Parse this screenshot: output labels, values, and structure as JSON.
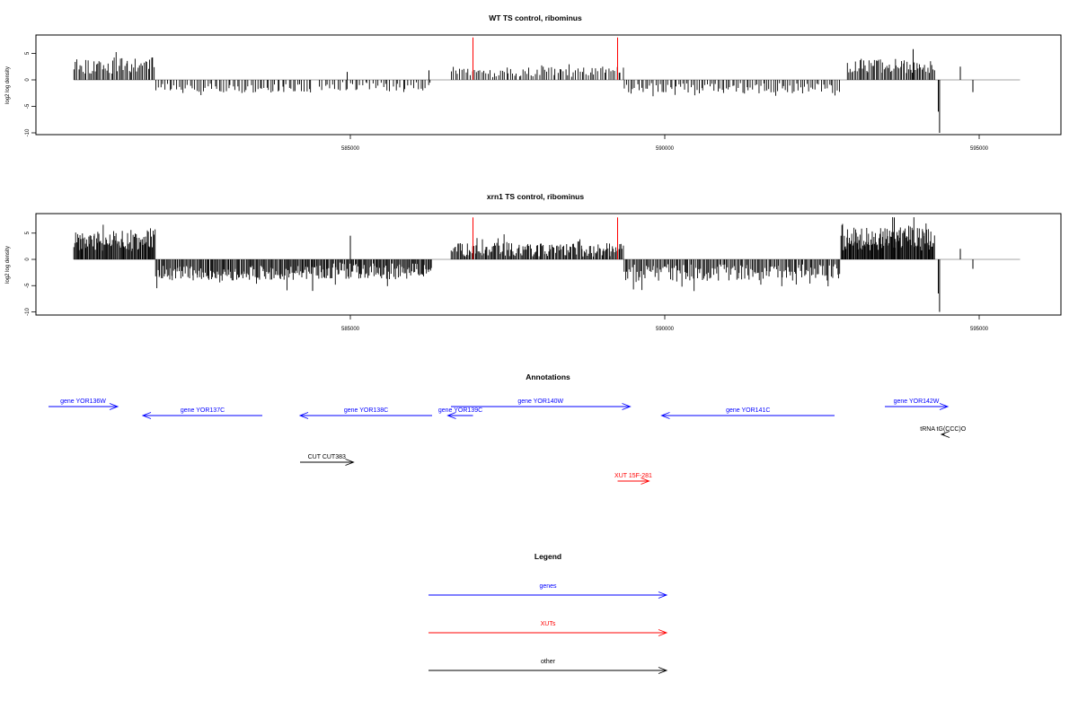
{
  "chart_data": [
    {
      "type": "bar",
      "title": "WT TS control, ribominus",
      "ylabel": "log2 log density",
      "ylim": [
        -10,
        8.5
      ],
      "xlim": [
        580000,
        596300
      ],
      "yticks": [
        "-10",
        "-5",
        "0",
        "5"
      ],
      "xticks": [
        "585000",
        "590000",
        "595000"
      ],
      "markers": [
        {
          "x": 586950,
          "y": 8
        },
        {
          "x": 589250,
          "y": 8
        }
      ],
      "segments": [
        {
          "from": 580600,
          "to": 581900,
          "mean": 2.7,
          "amp": 1.6,
          "n": 55,
          "seed": 11
        },
        {
          "from": 581900,
          "to": 584400,
          "mean": -1.6,
          "amp": 0.9,
          "n": 70,
          "seed": 12
        },
        {
          "from": 584500,
          "to": 586300,
          "mean": -1.2,
          "amp": 0.8,
          "n": 45,
          "seed": 13
        },
        {
          "from": 586600,
          "to": 589350,
          "mean": 1.5,
          "amp": 1.0,
          "n": 85,
          "seed": 14
        },
        {
          "from": 589350,
          "to": 592800,
          "mean": -1.6,
          "amp": 1.0,
          "n": 105,
          "seed": 15
        },
        {
          "from": 592900,
          "to": 594300,
          "mean": 2.6,
          "amp": 1.3,
          "n": 65,
          "seed": 16
        }
      ],
      "spikes": [
        {
          "x": 584950,
          "y": 1.5
        },
        {
          "x": 586250,
          "y": 1.8
        },
        {
          "x": 593950,
          "y": 5.8
        },
        {
          "x": 594350,
          "y": -6
        },
        {
          "x": 594370,
          "y": -10
        },
        {
          "x": 594700,
          "y": 2.5
        },
        {
          "x": 594900,
          "y": -2.3
        }
      ]
    },
    {
      "type": "bar",
      "title": "xrn1 TS control, ribominus",
      "ylabel": "log2 log density",
      "ylim": [
        -10,
        8.5
      ],
      "xlim": [
        580000,
        596300
      ],
      "yticks": [
        "-10",
        "-5",
        "0",
        "5"
      ],
      "xticks": [
        "585000",
        "590000",
        "595000"
      ],
      "markers": [
        {
          "x": 586950,
          "y": 8
        },
        {
          "x": 589250,
          "y": 8
        }
      ],
      "segments": [
        {
          "from": 580600,
          "to": 581900,
          "mean": 3.6,
          "amp": 2.0,
          "n": 95,
          "seed": 21
        },
        {
          "from": 581900,
          "to": 584400,
          "mean": -2.6,
          "amp": 1.4,
          "n": 150,
          "seed": 22
        },
        {
          "from": 584400,
          "to": 586300,
          "mean": -2.2,
          "amp": 1.6,
          "n": 120,
          "seed": 23
        },
        {
          "from": 586600,
          "to": 589350,
          "mean": 1.8,
          "amp": 1.3,
          "n": 160,
          "seed": 24
        },
        {
          "from": 589350,
          "to": 592800,
          "mean": -2.5,
          "amp": 1.6,
          "n": 170,
          "seed": 25
        },
        {
          "from": 592800,
          "to": 594300,
          "mean": 3.9,
          "amp": 2.2,
          "n": 130,
          "seed": 26
        }
      ],
      "spikes": [
        {
          "x": 584400,
          "y": -6
        },
        {
          "x": 585000,
          "y": 4.5
        },
        {
          "x": 593650,
          "y": 8
        },
        {
          "x": 594350,
          "y": -6.5
        },
        {
          "x": 594370,
          "y": -10
        },
        {
          "x": 594700,
          "y": 2
        },
        {
          "x": 594900,
          "y": -1.8
        }
      ]
    }
  ],
  "annotations": {
    "title": "Annotations",
    "features": [
      {
        "label": "gene YOR136W",
        "start": 580200,
        "end": 581300,
        "strand": "+",
        "row": 0,
        "type": "genes"
      },
      {
        "label": "gene YOR137C",
        "start": 581700,
        "end": 583600,
        "strand": "-",
        "row": 1,
        "type": "genes"
      },
      {
        "label": "gene YOR138C",
        "start": 584200,
        "end": 586300,
        "strand": "-",
        "row": 1,
        "type": "genes"
      },
      {
        "label": "gene YOR139C",
        "start": 586550,
        "end": 586950,
        "strand": "-",
        "row": 1,
        "type": "genes"
      },
      {
        "label": "gene YOR140W",
        "start": 586600,
        "end": 589450,
        "strand": "+",
        "row": 0,
        "type": "genes"
      },
      {
        "label": "gene YOR141C",
        "start": 589950,
        "end": 592700,
        "strand": "-",
        "row": 1,
        "type": "genes"
      },
      {
        "label": "gene YOR142W",
        "start": 593500,
        "end": 594500,
        "strand": "+",
        "row": 0,
        "type": "genes"
      },
      {
        "label": "tRNA tG(CCC)O",
        "start": 594400,
        "end": 594450,
        "strand": "-",
        "row": 2,
        "type": "other"
      },
      {
        "label": "CUT CUT383",
        "start": 584200,
        "end": 585050,
        "strand": "+",
        "row": 3,
        "type": "other"
      },
      {
        "label": "XUT 15F-281",
        "start": 589250,
        "end": 589750,
        "strand": "+",
        "row": 4,
        "type": "xuts"
      }
    ]
  },
  "legend": {
    "title": "Legend",
    "items": [
      {
        "label": "genes",
        "color": "#0000ff"
      },
      {
        "label": "XUTs",
        "color": "#ff0000"
      },
      {
        "label": "other",
        "color": "#000000"
      }
    ]
  }
}
